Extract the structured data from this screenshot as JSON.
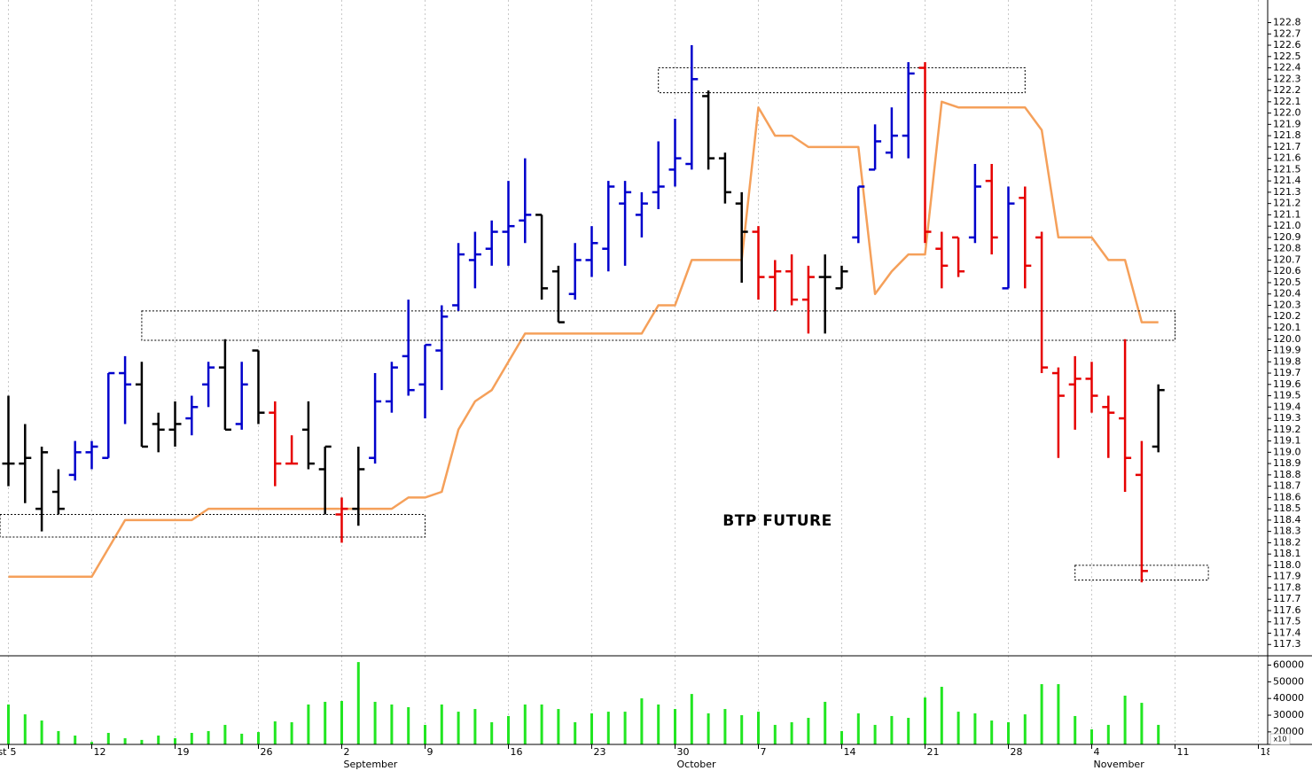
{
  "chart_data": [
    {
      "type": "ohlc",
      "annotation": "BTP FUTURE",
      "categories": [
        "5",
        null,
        null,
        null,
        null,
        "12",
        null,
        null,
        null,
        null,
        "19",
        null,
        null,
        null,
        null,
        "26",
        null,
        null,
        null,
        null,
        "2",
        null,
        null,
        null,
        null,
        "9",
        null,
        null,
        null,
        null,
        "16",
        null,
        null,
        null,
        null,
        "23",
        null,
        null,
        null,
        null,
        "30",
        null,
        null,
        null,
        null,
        "7",
        null,
        null,
        null,
        null,
        "14",
        null,
        null,
        null,
        null,
        "21",
        null,
        null,
        null,
        null,
        "28",
        null,
        null,
        null,
        null,
        "4",
        null,
        null,
        null,
        null,
        "11",
        null,
        null,
        null,
        null,
        "18"
      ],
      "month_labels": [
        {
          "index": 0,
          "label": "August"
        },
        {
          "index": 20,
          "label": "September"
        },
        {
          "index": 40,
          "label": "October"
        },
        {
          "index": 65,
          "label": "November"
        }
      ],
      "open": [
        118.9,
        118.9,
        118.5,
        118.65,
        118.8,
        119.0,
        118.95,
        119.7,
        119.6,
        119.25,
        119.2,
        119.3,
        119.6,
        119.75,
        119.25,
        119.9,
        119.35,
        118.9,
        119.2,
        118.85,
        118.45,
        118.5,
        118.95,
        119.45,
        119.85,
        119.6,
        119.9,
        120.3,
        120.7,
        120.8,
        120.95,
        121.05,
        121.1,
        120.6,
        120.4,
        120.7,
        120.8,
        121.2,
        121.1,
        121.3,
        121.5,
        121.55,
        122.15,
        121.6,
        121.2,
        120.95,
        120.55,
        120.6,
        120.35,
        120.55,
        120.45,
        120.9,
        121.5,
        121.65,
        121.8,
        122.4,
        120.8,
        120.9,
        120.9,
        121.4,
        120.45,
        121.25,
        120.9,
        119.7,
        119.6,
        119.65,
        119.4,
        119.3,
        118.8,
        119.05,
        null,
        null,
        null,
        null,
        null,
        null
      ],
      "high": [
        119.5,
        119.25,
        119.05,
        118.85,
        119.1,
        119.1,
        119.7,
        119.85,
        119.8,
        119.35,
        119.45,
        119.5,
        119.8,
        120.0,
        119.8,
        119.9,
        119.45,
        119.15,
        119.45,
        119.05,
        118.6,
        119.05,
        119.7,
        119.8,
        120.35,
        119.95,
        120.3,
        120.85,
        120.95,
        121.05,
        121.4,
        121.6,
        121.1,
        120.65,
        120.85,
        121.0,
        121.4,
        121.4,
        121.3,
        121.75,
        121.95,
        122.6,
        122.2,
        121.65,
        121.3,
        121.0,
        120.7,
        120.75,
        120.65,
        120.75,
        120.65,
        121.35,
        121.9,
        122.05,
        122.45,
        122.45,
        120.95,
        120.9,
        121.55,
        121.55,
        121.35,
        121.35,
        120.95,
        119.75,
        119.85,
        119.8,
        119.5,
        120.0,
        119.1,
        119.6,
        null,
        null,
        null,
        null,
        null,
        null
      ],
      "low": [
        118.7,
        118.55,
        118.3,
        118.45,
        118.75,
        118.85,
        118.95,
        119.25,
        119.05,
        119.0,
        119.05,
        119.15,
        119.4,
        119.2,
        119.2,
        119.25,
        118.7,
        118.9,
        118.85,
        118.45,
        118.2,
        118.35,
        118.9,
        119.35,
        119.5,
        119.3,
        119.55,
        120.25,
        120.45,
        120.65,
        120.65,
        120.85,
        120.35,
        120.15,
        120.35,
        120.55,
        120.6,
        120.65,
        120.9,
        121.15,
        121.35,
        121.5,
        121.5,
        121.2,
        120.5,
        120.35,
        120.25,
        120.3,
        120.05,
        120.05,
        120.45,
        120.85,
        121.5,
        121.6,
        121.6,
        120.85,
        120.45,
        120.55,
        120.85,
        120.75,
        120.45,
        120.45,
        119.7,
        118.95,
        119.2,
        119.35,
        118.95,
        118.65,
        117.85,
        119.0,
        null,
        null,
        null,
        null,
        null,
        null
      ],
      "close": [
        118.9,
        118.95,
        119.0,
        118.5,
        119.0,
        119.05,
        119.7,
        119.6,
        119.05,
        119.2,
        119.25,
        119.4,
        119.75,
        119.2,
        119.6,
        119.35,
        118.9,
        118.9,
        118.9,
        119.05,
        118.5,
        118.85,
        119.45,
        119.75,
        119.55,
        119.95,
        120.2,
        120.75,
        120.75,
        120.95,
        121.0,
        121.1,
        120.45,
        120.15,
        120.7,
        120.85,
        121.35,
        121.3,
        121.2,
        121.35,
        121.6,
        122.3,
        121.6,
        121.3,
        120.95,
        120.55,
        120.6,
        120.35,
        120.55,
        120.55,
        120.6,
        121.35,
        121.75,
        121.8,
        122.35,
        120.95,
        120.65,
        120.6,
        121.35,
        120.9,
        121.2,
        120.65,
        119.75,
        119.5,
        119.65,
        119.5,
        119.35,
        118.95,
        117.95,
        119.55,
        null,
        null,
        null,
        null,
        null,
        null
      ],
      "bar_colors": [
        "#000000",
        "#000000",
        "#000000",
        "#000000",
        "#0000cc",
        "#0000cc",
        "#0000cc",
        "#0000cc",
        "#000000",
        "#000000",
        "#000000",
        "#0000cc",
        "#0000cc",
        "#000000",
        "#0000cc",
        "#000000",
        "#e60000",
        "#e60000",
        "#000000",
        "#000000",
        "#e60000",
        "#000000",
        "#0000cc",
        "#0000cc",
        "#0000cc",
        "#0000cc",
        "#0000cc",
        "#0000cc",
        "#0000cc",
        "#0000cc",
        "#0000cc",
        "#0000cc",
        "#000000",
        "#000000",
        "#0000cc",
        "#0000cc",
        "#0000cc",
        "#0000cc",
        "#0000cc",
        "#0000cc",
        "#0000cc",
        "#0000cc",
        "#000000",
        "#000000",
        "#000000",
        "#e60000",
        "#e60000",
        "#e60000",
        "#e60000",
        "#000000",
        "#000000",
        "#0000cc",
        "#0000cc",
        "#0000cc",
        "#0000cc",
        "#e60000",
        "#e60000",
        "#e60000",
        "#0000cc",
        "#e60000",
        "#0000cc",
        "#e60000",
        "#e60000",
        "#e60000",
        "#e60000",
        "#e60000",
        "#e60000",
        "#e60000",
        "#e60000",
        "#000000",
        null,
        null,
        null,
        null,
        null,
        null
      ],
      "line": {
        "color": "#f5a05a",
        "values": [
          117.9,
          117.9,
          117.9,
          117.9,
          117.9,
          117.9,
          118.15,
          118.4,
          118.4,
          118.4,
          118.4,
          118.4,
          118.5,
          118.5,
          118.5,
          118.5,
          118.5,
          118.5,
          118.5,
          118.5,
          118.5,
          118.5,
          118.5,
          118.5,
          118.6,
          118.6,
          118.65,
          119.2,
          119.45,
          119.55,
          119.8,
          120.05,
          120.05,
          120.05,
          120.05,
          120.05,
          120.05,
          120.05,
          120.05,
          120.3,
          120.3,
          120.7,
          120.7,
          120.7,
          120.7,
          122.05,
          121.8,
          121.8,
          121.7,
          121.7,
          121.7,
          121.7,
          120.4,
          120.6,
          120.75,
          120.75,
          122.1,
          122.05,
          122.05,
          122.05,
          122.05,
          122.05,
          121.85,
          120.9,
          120.9,
          120.9,
          120.7,
          120.7,
          120.15,
          120.15,
          null,
          null,
          null,
          null,
          null,
          null
        ]
      },
      "zones": [
        {
          "start": -0.5,
          "end": 25,
          "low": 118.25,
          "high": 118.45
        },
        {
          "start": 8,
          "end": 70,
          "low": 119.99,
          "high": 120.25
        },
        {
          "start": 39,
          "end": 61,
          "low": 122.18,
          "high": 122.4
        },
        {
          "start": 64,
          "end": 72,
          "low": 117.87,
          "high": 118.0
        }
      ],
      "ylim": [
        117.2,
        123.0
      ],
      "yticks": [
        117.3,
        117.4,
        117.5,
        117.6,
        117.7,
        117.8,
        117.9,
        {
          "value": 118,
          "label": "118.0"
        },
        118.1,
        118.2,
        118.3,
        118.4,
        118.5,
        118.6,
        118.7,
        118.8,
        118.9,
        {
          "value": 119,
          "label": "119.0"
        },
        119.1,
        119.2,
        119.3,
        119.4,
        119.5,
        119.6,
        119.7,
        119.8,
        119.9,
        {
          "value": 120,
          "label": "120.0"
        },
        120.1,
        120.2,
        120.3,
        120.4,
        120.5,
        120.6,
        120.7,
        120.8,
        120.9,
        {
          "value": 121,
          "label": "121.0"
        },
        121.1,
        121.2,
        121.3,
        121.4,
        121.5,
        121.6,
        121.7,
        121.8,
        121.9,
        {
          "value": 122,
          "label": "122.0"
        },
        122.1,
        122.2,
        122.3,
        122.4,
        122.5,
        122.6,
        122.7,
        122.8
      ],
      "grid": true
    },
    {
      "type": "bar",
      "multiplier_label": "x10",
      "color": "#22e622",
      "values": [
        36400,
        30500,
        26800,
        20500,
        17800,
        14000,
        19400,
        16200,
        15200,
        17800,
        16200,
        19400,
        20500,
        24200,
        18900,
        19900,
        26300,
        25800,
        36400,
        38000,
        38500,
        61800,
        38000,
        36400,
        34800,
        24200,
        36400,
        32100,
        33700,
        25800,
        29500,
        36400,
        36400,
        33700,
        25800,
        31100,
        32100,
        32100,
        40100,
        36400,
        33700,
        42700,
        31100,
        33700,
        30000,
        32100,
        24200,
        25800,
        28400,
        38000,
        20500,
        31100,
        24200,
        29500,
        28400,
        40600,
        47000,
        32100,
        31100,
        26800,
        25800,
        30500,
        48600,
        48600,
        29500,
        21500,
        24200,
        41700,
        37400,
        24200,
        null,
        null,
        null,
        null,
        null,
        null
      ],
      "ylim": [
        12500,
        64500
      ],
      "yticks": [
        20000,
        30000,
        40000,
        50000,
        60000
      ]
    }
  ]
}
